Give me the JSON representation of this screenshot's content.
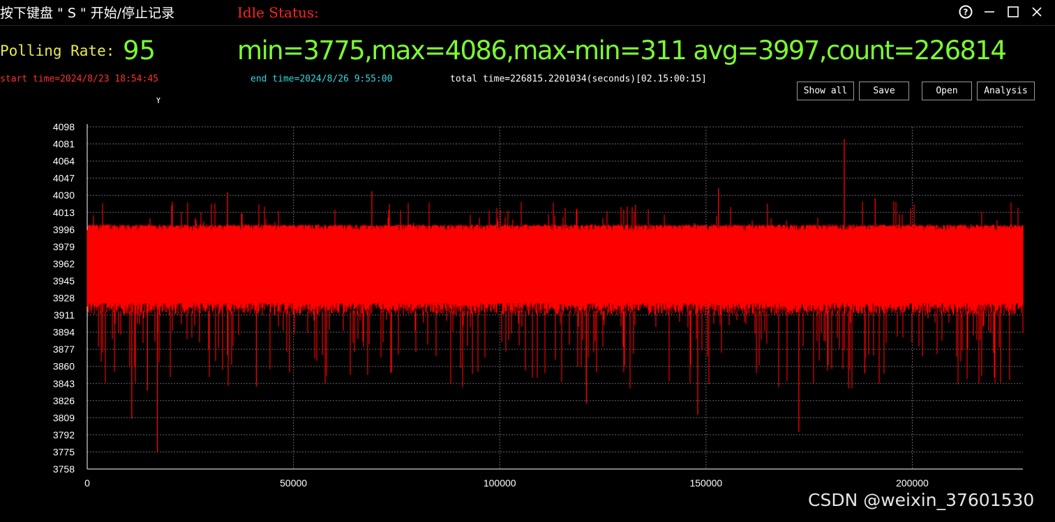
{
  "header": {
    "hint": "按下键盘 \" S \"  开始/停止记录",
    "status": "Idle Status:"
  },
  "polling": {
    "label": "Polling Rate:",
    "value": "95"
  },
  "stats": "min=3775,max=4086,max-min=311 avg=3997,count=226814",
  "times": {
    "start": "start time=2024/8/23 18:54:45",
    "end": "end time=2024/8/26 9:55:00",
    "total": "total time=226815.2201034(seconds)[02.15:00:15]"
  },
  "buttons": {
    "show_all": "Show all",
    "save": "Save",
    "open": "Open",
    "analysis": "Analysis"
  },
  "window_controls": [
    "help-icon",
    "minimize-icon",
    "maximize-icon",
    "close-icon"
  ],
  "watermark": "CSDN @weixin_37601530",
  "colors": {
    "background": "#000000",
    "series": "#ff0000",
    "stats": "#7cfc32",
    "rate_label": "#e8e855",
    "start_time": "#ff3030",
    "end_time": "#30d8e0"
  },
  "chart_data": {
    "type": "line",
    "title": "",
    "xlabel": "",
    "ylabel": "Y",
    "xlim": [
      0,
      226814
    ],
    "ylim": [
      3758,
      4098
    ],
    "yticks": [
      4098,
      4081,
      4064,
      4047,
      4030,
      4013,
      3996,
      3979,
      3962,
      3945,
      3928,
      3911,
      3894,
      3877,
      3860,
      3843,
      3826,
      3809,
      3792,
      3775,
      3758
    ],
    "xticks": [
      0,
      50000,
      100000,
      150000,
      200000
    ],
    "grid": true,
    "series": [
      {
        "color": "#ff0000",
        "band": [
          3923,
          3999
        ],
        "min": 3775,
        "max": 4086,
        "avg": 3997,
        "count": 226814
      }
    ],
    "notable_spikes": [
      {
        "x": 17000,
        "y": 3775
      },
      {
        "x": 10800,
        "y": 3808
      },
      {
        "x": 14600,
        "y": 3836
      },
      {
        "x": 41000,
        "y": 3840
      },
      {
        "x": 121000,
        "y": 3823
      },
      {
        "x": 148000,
        "y": 3812
      },
      {
        "x": 172500,
        "y": 3795
      },
      {
        "x": 188500,
        "y": 3853
      },
      {
        "x": 183500,
        "y": 4086
      },
      {
        "x": 34000,
        "y": 4033
      },
      {
        "x": 69000,
        "y": 4034
      },
      {
        "x": 153000,
        "y": 4037
      },
      {
        "x": 191000,
        "y": 4027
      }
    ]
  }
}
